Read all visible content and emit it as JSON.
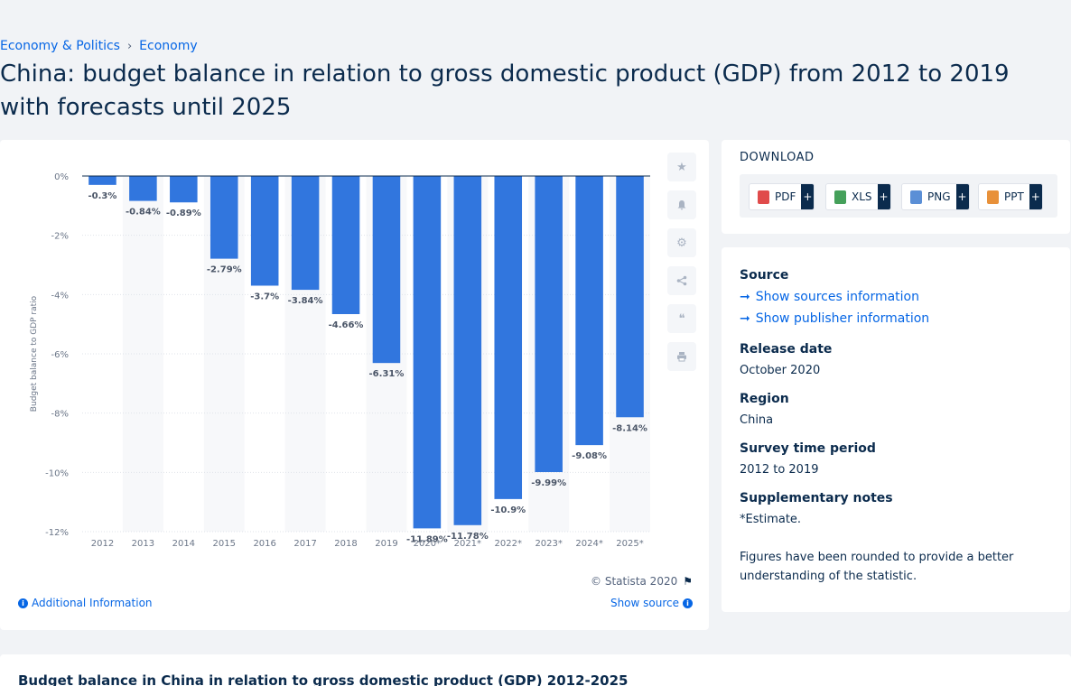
{
  "breadcrumb": {
    "items": [
      "Economy & Politics",
      "Economy"
    ]
  },
  "page_title": "China: budget balance in relation to gross domestic product (GDP) from 2012 to 2019 with forecasts until 2025",
  "chart_data": {
    "type": "bar",
    "categories": [
      "2012",
      "2013",
      "2014",
      "2015",
      "2016",
      "2017",
      "2018",
      "2019",
      "2020*",
      "2021*",
      "2022*",
      "2023*",
      "2024*",
      "2025*"
    ],
    "values": [
      -0.3,
      -0.84,
      -0.89,
      -2.79,
      -3.7,
      -3.84,
      -4.66,
      -6.31,
      -11.89,
      -11.78,
      -10.9,
      -9.99,
      -9.08,
      -8.14
    ],
    "labels": [
      "-0.3%",
      "-0.84%",
      "-0.89%",
      "-2.79%",
      "-3.7%",
      "-3.84%",
      "-4.66%",
      "-6.31%",
      "-11.89%",
      "-11.78%",
      "-10.9%",
      "-9.99%",
      "-9.08%",
      "-8.14%"
    ],
    "title": "",
    "xlabel": "",
    "ylabel": "Budget balance to GDP ratio",
    "ylim": [
      -12,
      0
    ],
    "yticks": [
      0,
      -2,
      -4,
      -6,
      -8,
      -10,
      -12
    ],
    "ytick_labels": [
      "0%",
      "-2%",
      "-4%",
      "-6%",
      "-8%",
      "-10%",
      "-12%"
    ],
    "bar_color": "#3176de",
    "grid": true
  },
  "chart_footer": {
    "copyright": "© Statista 2020",
    "additional_info": "Additional Information",
    "show_source": "Show source"
  },
  "download": {
    "title": "DOWNLOAD",
    "buttons": [
      {
        "label": "PDF",
        "plus": "+"
      },
      {
        "label": "XLS",
        "plus": "+"
      },
      {
        "label": "PNG",
        "plus": "+"
      },
      {
        "label": "PPT",
        "plus": "+"
      }
    ]
  },
  "source": {
    "heading": "Source",
    "sources_link": "Show sources information",
    "publisher_link": "Show publisher information",
    "release_heading": "Release date",
    "release_value": "October 2020",
    "region_heading": "Region",
    "region_value": "China",
    "survey_heading": "Survey time period",
    "survey_value": "2012 to 2019",
    "notes_heading": "Supplementary notes",
    "notes_value": "*Estimate.",
    "notes_extra": "Figures have been rounded to provide a better understanding of the statistic."
  },
  "bottom": {
    "title": "Budget balance in China in relation to gross domestic product (GDP) 2012-2025"
  },
  "toolbar_icons": [
    "star-icon",
    "bell-icon",
    "gear-icon",
    "share-icon",
    "quote-icon",
    "print-icon"
  ]
}
